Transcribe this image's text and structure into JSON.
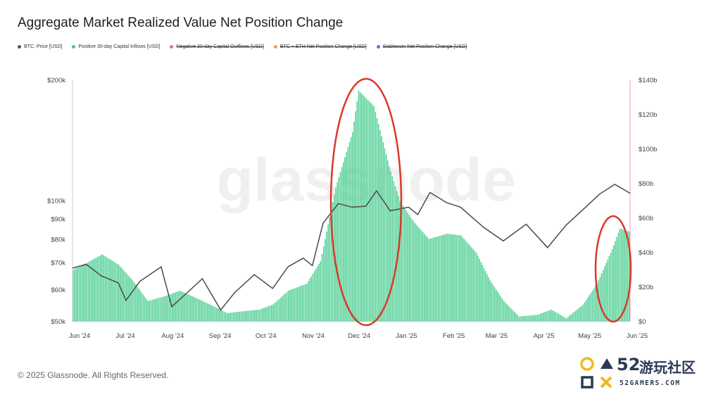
{
  "chart_data": {
    "type": "bar",
    "title": "Aggregate Market Realized Value Net Position Change",
    "legend": [
      {
        "label": "BTC: Price [USD]",
        "color": "#555555",
        "enabled": true
      },
      {
        "label": "Positive 30-day Capital Inflows [USD]",
        "color": "#3ec78b",
        "enabled": true
      },
      {
        "label": "Negative 30-day Capital Outflows [USD]",
        "color": "#f06b6b",
        "enabled": false
      },
      {
        "label": "BTC + ETH Net Position Change [USD]",
        "color": "#f5a033",
        "enabled": false
      },
      {
        "label": "Stablecoin Net Position Change [USD]",
        "color": "#6b6be0",
        "enabled": false
      }
    ],
    "x_ticks": [
      "Jun '24",
      "Jul '24",
      "Aug '24",
      "Sep '24",
      "Oct '24",
      "Nov '24",
      "Dec '24",
      "Jan '25",
      "Feb '25",
      "Mar '25",
      "Apr '25",
      "May '25",
      "Jun '25"
    ],
    "x_range": [
      "2024-06-01",
      "2025-06-01"
    ],
    "y_left": {
      "scale": "log",
      "range": [
        50000,
        200000
      ],
      "ticks": [
        "$200k",
        "$100k",
        "$90k",
        "$80k",
        "$70k",
        "$60k",
        "$50k"
      ],
      "tick_values": [
        200000,
        100000,
        90000,
        80000,
        70000,
        60000,
        50000
      ]
    },
    "y_right": {
      "scale": "linear",
      "range": [
        0,
        140
      ],
      "ticks": [
        "$140b",
        "$120b",
        "$100b",
        "$80b",
        "$60b",
        "$40b",
        "$20b",
        "$0"
      ],
      "tick_values": [
        140,
        120,
        100,
        80,
        60,
        40,
        20,
        0
      ]
    },
    "series": [
      {
        "name": "Positive 30-day Capital Inflows [USD]",
        "unit": "billion USD",
        "points": [
          [
            "2024-06-01",
            30
          ],
          [
            "2024-06-10",
            34
          ],
          [
            "2024-06-20",
            39
          ],
          [
            "2024-07-01",
            33
          ],
          [
            "2024-07-10",
            24
          ],
          [
            "2024-07-20",
            12
          ],
          [
            "2024-08-01",
            15
          ],
          [
            "2024-08-10",
            18
          ],
          [
            "2024-08-20",
            14
          ],
          [
            "2024-09-01",
            9
          ],
          [
            "2024-09-10",
            5
          ],
          [
            "2024-09-20",
            6
          ],
          [
            "2024-10-01",
            7
          ],
          [
            "2024-10-10",
            10
          ],
          [
            "2024-10-20",
            18
          ],
          [
            "2024-11-01",
            22
          ],
          [
            "2024-11-10",
            35
          ],
          [
            "2024-11-20",
            78
          ],
          [
            "2024-12-01",
            110
          ],
          [
            "2024-12-05",
            134
          ],
          [
            "2024-12-15",
            125
          ],
          [
            "2024-12-25",
            90
          ],
          [
            "2025-01-01",
            70
          ],
          [
            "2025-01-10",
            58
          ],
          [
            "2025-01-20",
            48
          ],
          [
            "2025-02-01",
            51
          ],
          [
            "2025-02-10",
            50
          ],
          [
            "2025-02-20",
            40
          ],
          [
            "2025-03-01",
            24
          ],
          [
            "2025-03-10",
            12
          ],
          [
            "2025-03-20",
            3
          ],
          [
            "2025-04-01",
            4
          ],
          [
            "2025-04-10",
            7
          ],
          [
            "2025-04-20",
            2
          ],
          [
            "2025-05-01",
            10
          ],
          [
            "2025-05-10",
            22
          ],
          [
            "2025-05-20",
            42
          ],
          [
            "2025-05-25",
            54
          ],
          [
            "2025-06-01",
            52
          ]
        ]
      },
      {
        "name": "BTC: Price [USD]",
        "unit": "USD",
        "points": [
          [
            "2024-06-01",
            68000
          ],
          [
            "2024-06-10",
            69500
          ],
          [
            "2024-06-20",
            65000
          ],
          [
            "2024-07-01",
            62500
          ],
          [
            "2024-07-06",
            56500
          ],
          [
            "2024-07-15",
            63000
          ],
          [
            "2024-07-29",
            68500
          ],
          [
            "2024-08-05",
            54500
          ],
          [
            "2024-08-15",
            59000
          ],
          [
            "2024-08-25",
            64000
          ],
          [
            "2024-09-06",
            53500
          ],
          [
            "2024-09-15",
            59000
          ],
          [
            "2024-09-28",
            65500
          ],
          [
            "2024-10-10",
            60500
          ],
          [
            "2024-10-20",
            68500
          ],
          [
            "2024-10-30",
            72000
          ],
          [
            "2024-11-05",
            69000
          ],
          [
            "2024-11-12",
            88000
          ],
          [
            "2024-11-22",
            98500
          ],
          [
            "2024-12-01",
            96500
          ],
          [
            "2024-12-10",
            97000
          ],
          [
            "2024-12-17",
            106000
          ],
          [
            "2024-12-26",
            94500
          ],
          [
            "2025-01-07",
            96500
          ],
          [
            "2025-01-13",
            92500
          ],
          [
            "2025-01-21",
            105000
          ],
          [
            "2025-02-01",
            99000
          ],
          [
            "2025-02-10",
            96500
          ],
          [
            "2025-02-25",
            86000
          ],
          [
            "2025-03-10",
            79500
          ],
          [
            "2025-03-25",
            87500
          ],
          [
            "2025-04-08",
            76500
          ],
          [
            "2025-04-20",
            87000
          ],
          [
            "2025-05-01",
            95000
          ],
          [
            "2025-05-12",
            104000
          ],
          [
            "2025-05-22",
            110000
          ],
          [
            "2025-06-01",
            104500
          ]
        ]
      }
    ],
    "annotations": [
      "red ellipse around Dec '24 inflow peak",
      "red ellipse around May–Jun '25 inflow rise"
    ],
    "grid": false,
    "legend_position": "top-left",
    "watermark": "glassnode"
  },
  "footer": {
    "copyright": "© 2025 Glassnode. All Rights Reserved."
  },
  "logo": {
    "number": "52",
    "chinese": "游玩社区",
    "url": "52GAMERS.COM"
  }
}
